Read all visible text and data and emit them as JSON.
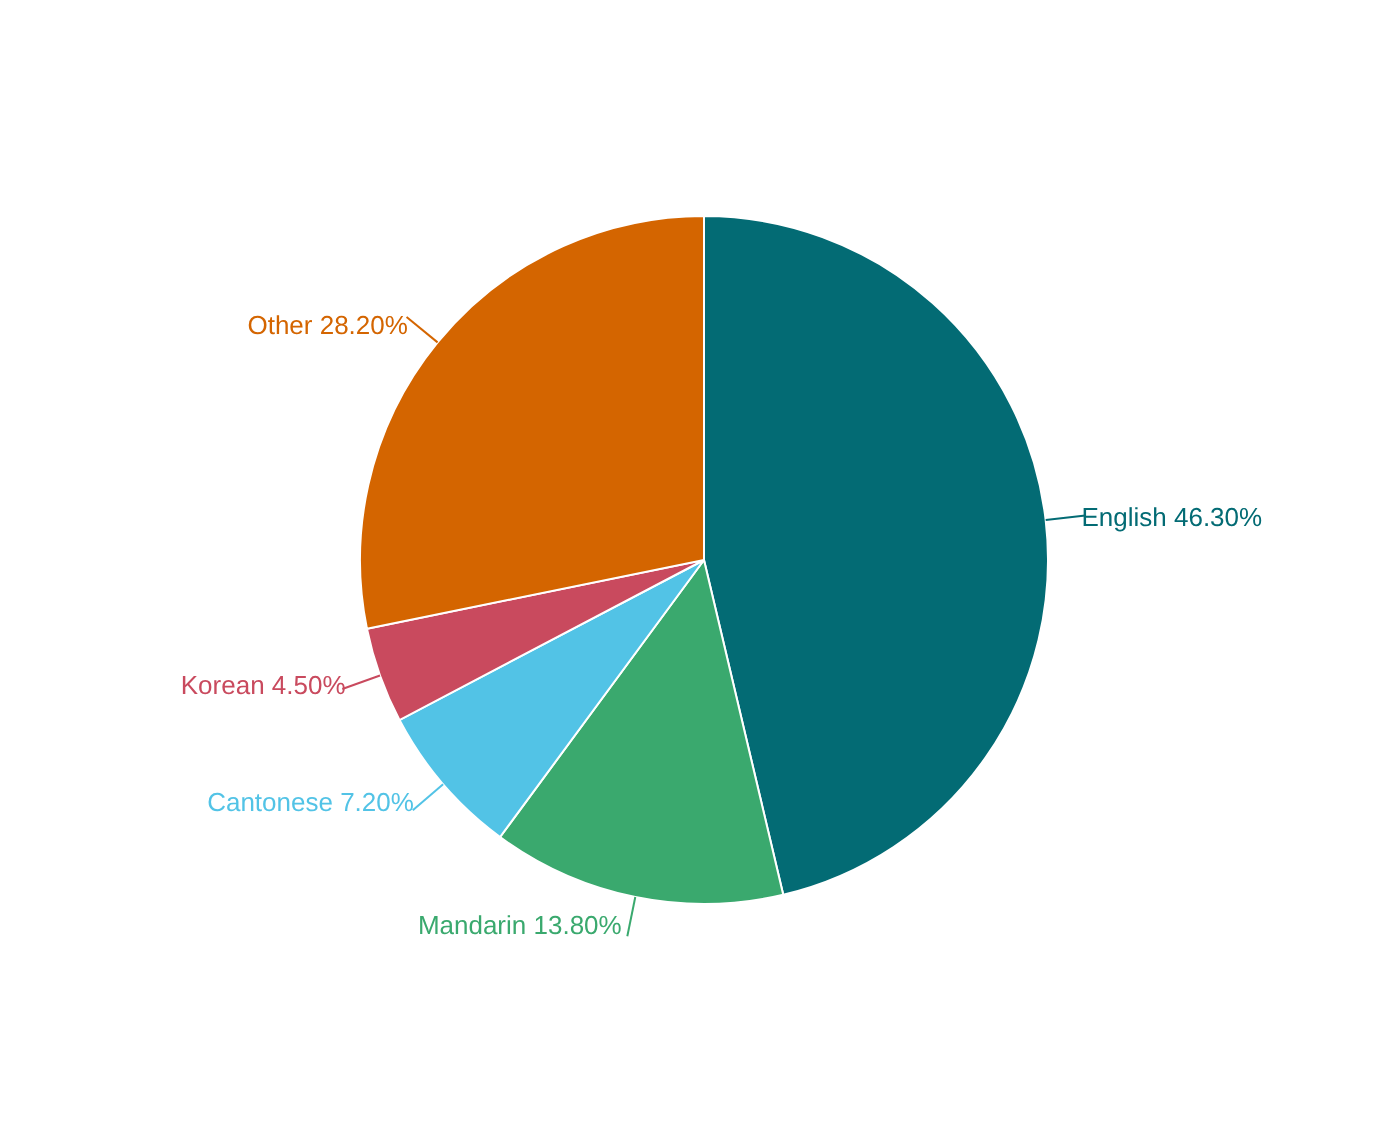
{
  "chart_data": {
    "type": "pie",
    "categories": [
      "English",
      "Mandarin",
      "Cantonese",
      "Korean",
      "Other"
    ],
    "values": [
      46.3,
      13.8,
      7.2,
      4.5,
      28.2
    ],
    "value_labels": [
      "46.30%",
      "13.80%",
      "7.20%",
      "4.50%",
      "28.20%"
    ],
    "colors": [
      "#036b74",
      "#3aa96e",
      "#52c3e6",
      "#c94a5e",
      "#d46500"
    ]
  }
}
